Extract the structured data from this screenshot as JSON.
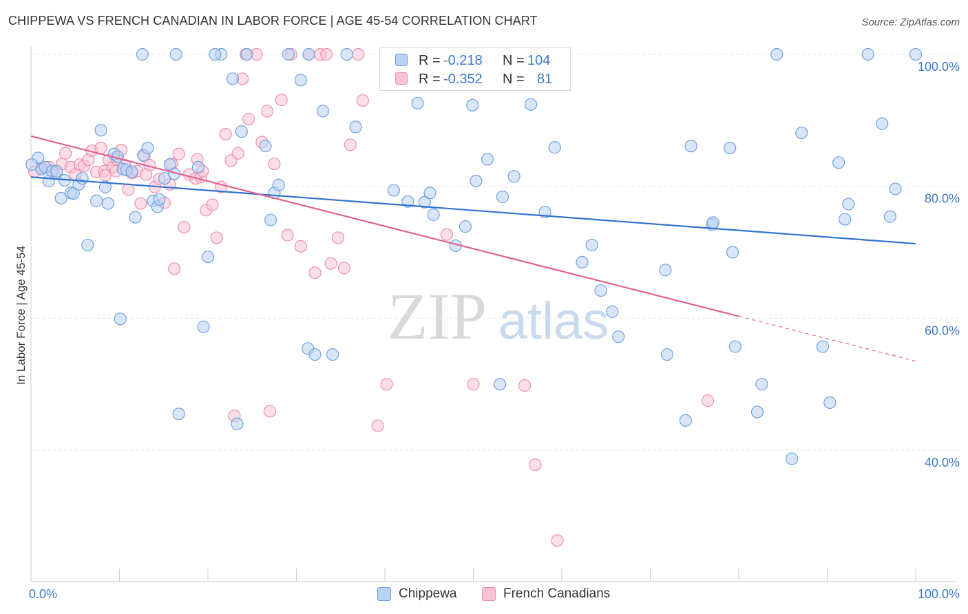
{
  "header": {
    "title": "CHIPPEWA VS FRENCH CANADIAN IN LABOR FORCE | AGE 45-54 CORRELATION CHART",
    "source": "Source: ZipAtlas.com"
  },
  "legend": {
    "r_label": "R =",
    "n_label": "N =",
    "series": [
      {
        "name": "Chippewa",
        "r": "-0.218",
        "n": "104"
      },
      {
        "name": "French Canadians",
        "r": "-0.352",
        "n": "81"
      }
    ]
  },
  "watermark": {
    "part1": "ZIP",
    "part2": "atlas"
  },
  "colors": {
    "blue_fill": "#b8d2f3",
    "blue_stroke": "#6fa2e0",
    "blue_line": "#2f72d0",
    "pink_fill": "#f8c4d4",
    "pink_stroke": "#ec8fb0",
    "pink_line": "#e0628f",
    "axis_text": "#3d79c9"
  },
  "chart_data": {
    "type": "scatter",
    "title": "CHIPPEWA VS FRENCH CANADIAN IN LABOR FORCE | AGE 45-54 CORRELATION CHART",
    "xlabel": "",
    "ylabel": "In Labor Force | Age 45-54",
    "xlim": [
      0,
      100
    ],
    "ylim": [
      20,
      102
    ],
    "x_tick_labels": [
      "0.0%",
      "100.0%"
    ],
    "y_ticks": [
      40,
      60,
      80,
      100
    ],
    "y_tick_labels": [
      "40.0%",
      "60.0%",
      "80.0%",
      "100.0%"
    ],
    "grid": true,
    "legend_position": "top-center",
    "series": [
      {
        "name": "Chippewa",
        "r": -0.218,
        "n": 104,
        "trend": {
          "x0": 0,
          "y0": 81.4,
          "x1": 100,
          "y1": 71.3
        },
        "points": [
          [
            0.8,
            84.3
          ],
          [
            1.2,
            82.6
          ],
          [
            1.6,
            82.9
          ],
          [
            2.0,
            80.8
          ],
          [
            2.4,
            82.3
          ],
          [
            2.9,
            82.3
          ],
          [
            3.4,
            78.2
          ],
          [
            3.8,
            80.9
          ],
          [
            4.5,
            79.0
          ],
          [
            4.8,
            78.9
          ],
          [
            5.4,
            80.3
          ],
          [
            5.8,
            81.2
          ],
          [
            6.4,
            71.1
          ],
          [
            7.4,
            77.8
          ],
          [
            7.9,
            88.5
          ],
          [
            8.4,
            79.9
          ],
          [
            8.7,
            77.4
          ],
          [
            9.4,
            84.9
          ],
          [
            9.8,
            84.5
          ],
          [
            10.1,
            59.9
          ],
          [
            10.4,
            82.6
          ],
          [
            10.8,
            82.5
          ],
          [
            11.4,
            82.2
          ],
          [
            11.8,
            75.3
          ],
          [
            12.7,
            84.7
          ],
          [
            13.2,
            85.8
          ],
          [
            13.8,
            77.8
          ],
          [
            14.3,
            76.9
          ],
          [
            14.5,
            78.0
          ],
          [
            15.1,
            81.2
          ],
          [
            15.7,
            83.3
          ],
          [
            16.2,
            81.9
          ],
          [
            16.7,
            45.5
          ],
          [
            18.9,
            82.9
          ],
          [
            19.5,
            58.7
          ],
          [
            20.0,
            69.3
          ],
          [
            21.5,
            100.0
          ],
          [
            22.8,
            96.3
          ],
          [
            23.3,
            44.0
          ],
          [
            23.8,
            88.3
          ],
          [
            24.4,
            100.0
          ],
          [
            26.5,
            86.1
          ],
          [
            27.1,
            74.9
          ],
          [
            27.5,
            79.0
          ],
          [
            28.0,
            80.2
          ],
          [
            29.1,
            100.0
          ],
          [
            30.5,
            96.1
          ],
          [
            31.3,
            55.4
          ],
          [
            32.1,
            54.5
          ],
          [
            33.0,
            91.4
          ],
          [
            34.1,
            54.5
          ],
          [
            35.7,
            100.0
          ],
          [
            36.7,
            89.0
          ],
          [
            31.4,
            100.0
          ],
          [
            16.4,
            100.0
          ],
          [
            12.6,
            100.0
          ],
          [
            20.8,
            100.0
          ],
          [
            41.0,
            79.4
          ],
          [
            42.6,
            77.7
          ],
          [
            43.7,
            92.6
          ],
          [
            44.5,
            77.6
          ],
          [
            45.1,
            79.0
          ],
          [
            45.5,
            75.7
          ],
          [
            48.0,
            71.0
          ],
          [
            49.1,
            73.9
          ],
          [
            49.9,
            92.3
          ],
          [
            50.3,
            80.8
          ],
          [
            51.6,
            84.1
          ],
          [
            53.0,
            50.0
          ],
          [
            53.3,
            78.4
          ],
          [
            54.6,
            81.5
          ],
          [
            56.5,
            92.4
          ],
          [
            58.1,
            76.1
          ],
          [
            59.2,
            85.9
          ],
          [
            62.3,
            68.5
          ],
          [
            63.4,
            71.1
          ],
          [
            64.4,
            64.2
          ],
          [
            65.7,
            61.0
          ],
          [
            66.4,
            57.2
          ],
          [
            71.7,
            67.3
          ],
          [
            71.9,
            54.5
          ],
          [
            74.0,
            44.5
          ],
          [
            74.6,
            86.1
          ],
          [
            77.0,
            74.2
          ],
          [
            77.1,
            74.5
          ],
          [
            79.0,
            85.8
          ],
          [
            79.3,
            70.0
          ],
          [
            79.6,
            55.7
          ],
          [
            82.1,
            45.8
          ],
          [
            82.6,
            50.0
          ],
          [
            84.3,
            100.0
          ],
          [
            86.0,
            38.7
          ],
          [
            87.1,
            88.1
          ],
          [
            89.5,
            55.7
          ],
          [
            90.3,
            47.2
          ],
          [
            91.3,
            83.6
          ],
          [
            92.0,
            75.0
          ],
          [
            92.4,
            77.3
          ],
          [
            94.6,
            100.0
          ],
          [
            96.2,
            89.5
          ],
          [
            97.1,
            75.4
          ],
          [
            97.7,
            79.6
          ],
          [
            100.0,
            100.0
          ],
          [
            0.1,
            83.3
          ]
        ]
      },
      {
        "name": "French Canadians",
        "r": -0.352,
        "n": 81,
        "trend": {
          "x0": 0,
          "y0": 87.6,
          "x1": 80,
          "y1": 60.3
        },
        "trend_dashed_to": {
          "x": 100,
          "y": 53.5
        },
        "points": [
          [
            0.4,
            82.2
          ],
          [
            1.2,
            82.8
          ],
          [
            2.0,
            82.9
          ],
          [
            2.9,
            82.0
          ],
          [
            3.5,
            83.4
          ],
          [
            3.9,
            85.0
          ],
          [
            4.5,
            82.9
          ],
          [
            5.0,
            81.8
          ],
          [
            5.5,
            83.3
          ],
          [
            6.0,
            83.1
          ],
          [
            6.5,
            84.0
          ],
          [
            6.9,
            85.4
          ],
          [
            7.4,
            82.2
          ],
          [
            7.9,
            85.8
          ],
          [
            8.3,
            82.3
          ],
          [
            8.8,
            84.0
          ],
          [
            9.2,
            82.9
          ],
          [
            9.7,
            84.1
          ],
          [
            10.2,
            85.5
          ],
          [
            10.6,
            83.2
          ],
          [
            11.0,
            79.5
          ],
          [
            11.4,
            82.0
          ],
          [
            12.0,
            82.3
          ],
          [
            12.4,
            77.4
          ],
          [
            12.8,
            84.6
          ],
          [
            13.4,
            83.2
          ],
          [
            14.0,
            79.9
          ],
          [
            14.5,
            81.1
          ],
          [
            15.1,
            77.5
          ],
          [
            15.7,
            80.3
          ],
          [
            16.2,
            67.5
          ],
          [
            16.7,
            84.9
          ],
          [
            17.3,
            73.8
          ],
          [
            17.9,
            81.8
          ],
          [
            18.6,
            81.2
          ],
          [
            19.2,
            81.4
          ],
          [
            19.4,
            82.3
          ],
          [
            19.8,
            76.4
          ],
          [
            20.5,
            77.2
          ],
          [
            21.0,
            72.2
          ],
          [
            21.5,
            79.9
          ],
          [
            22.0,
            87.9
          ],
          [
            22.6,
            83.9
          ],
          [
            23.0,
            45.2
          ],
          [
            23.4,
            85.0
          ],
          [
            23.9,
            96.3
          ],
          [
            24.3,
            100.0
          ],
          [
            24.6,
            90.2
          ],
          [
            25.5,
            100.0
          ],
          [
            26.1,
            86.7
          ],
          [
            26.7,
            91.4
          ],
          [
            27.0,
            45.9
          ],
          [
            27.5,
            83.4
          ],
          [
            28.3,
            93.1
          ],
          [
            29.0,
            72.6
          ],
          [
            29.4,
            100.0
          ],
          [
            30.5,
            70.9
          ],
          [
            31.4,
            100.0
          ],
          [
            32.1,
            66.9
          ],
          [
            32.7,
            100.0
          ],
          [
            33.4,
            100.0
          ],
          [
            33.9,
            68.3
          ],
          [
            34.7,
            72.2
          ],
          [
            35.4,
            67.6
          ],
          [
            36.1,
            86.3
          ],
          [
            37.0,
            100.0
          ],
          [
            37.5,
            93.0
          ],
          [
            39.2,
            43.7
          ],
          [
            40.2,
            50.0
          ],
          [
            44.7,
            100.0
          ],
          [
            47.0,
            72.7
          ],
          [
            50.0,
            50.0
          ],
          [
            55.8,
            49.8
          ],
          [
            57.0,
            37.8
          ],
          [
            59.5,
            26.3
          ],
          [
            76.5,
            47.5
          ],
          [
            13.0,
            81.8
          ],
          [
            9.6,
            82.3
          ],
          [
            8.4,
            81.7
          ],
          [
            18.8,
            84.1
          ],
          [
            15.9,
            83.4
          ]
        ]
      }
    ]
  }
}
